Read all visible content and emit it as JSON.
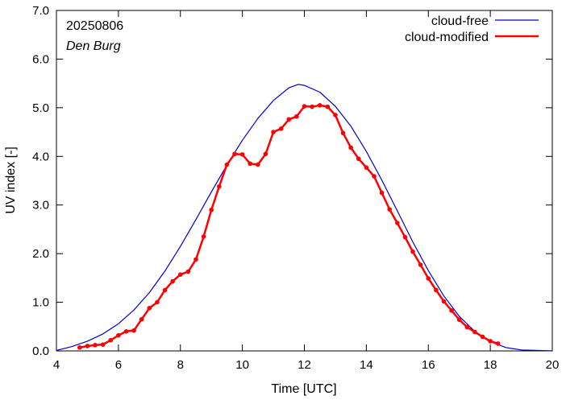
{
  "chart_data": {
    "type": "line",
    "annotations": {
      "date": "20250806",
      "station": "Den Burg"
    },
    "xlabel": "Time  [UTC]",
    "ylabel": "UV index  [-]",
    "xlim": [
      4,
      20
    ],
    "ylim": [
      0,
      7
    ],
    "x_ticks": [
      "4",
      "6",
      "8",
      "10",
      "12",
      "14",
      "16",
      "18",
      "20"
    ],
    "y_ticks": [
      "0.0",
      "1.0",
      "2.0",
      "3.0",
      "4.0",
      "5.0",
      "6.0",
      "7.0"
    ],
    "legend_position": "top-right",
    "grid": false,
    "series": [
      {
        "name": "cloud-free",
        "color": "#0000cc",
        "markers": false,
        "x": [
          4.0,
          4.5,
          5.0,
          5.5,
          6.0,
          6.5,
          7.0,
          7.5,
          8.0,
          8.5,
          9.0,
          9.5,
          10.0,
          10.5,
          11.0,
          11.5,
          11.8,
          12.0,
          12.5,
          13.0,
          13.5,
          14.0,
          14.5,
          15.0,
          15.5,
          16.0,
          16.5,
          17.0,
          17.5,
          18.0,
          18.5,
          19.0,
          19.5,
          20.0
        ],
        "y": [
          0.01,
          0.09,
          0.2,
          0.35,
          0.56,
          0.84,
          1.2,
          1.64,
          2.15,
          2.7,
          3.27,
          3.82,
          4.33,
          4.78,
          5.15,
          5.41,
          5.48,
          5.46,
          5.32,
          5.03,
          4.62,
          4.1,
          3.51,
          2.88,
          2.24,
          1.65,
          1.13,
          0.71,
          0.4,
          0.19,
          0.07,
          0.02,
          0.01,
          0.0
        ]
      },
      {
        "name": "cloud-modified",
        "color": "#ff0000",
        "markers": true,
        "x": [
          4.75,
          5.0,
          5.25,
          5.5,
          5.75,
          6.0,
          6.25,
          6.5,
          6.75,
          7.0,
          7.25,
          7.5,
          7.75,
          8.0,
          8.25,
          8.5,
          8.75,
          9.0,
          9.25,
          9.5,
          9.75,
          10.0,
          10.25,
          10.5,
          10.75,
          11.0,
          11.25,
          11.5,
          11.75,
          12.0,
          12.25,
          12.5,
          12.75,
          13.0,
          13.25,
          13.5,
          13.75,
          14.0,
          14.25,
          14.5,
          14.75,
          15.0,
          15.25,
          15.5,
          15.75,
          16.0,
          16.25,
          16.5,
          16.75,
          17.0,
          17.25,
          17.5,
          17.75,
          18.0,
          18.25
        ],
        "y": [
          0.07,
          0.1,
          0.12,
          0.13,
          0.22,
          0.32,
          0.4,
          0.42,
          0.65,
          0.88,
          1.0,
          1.25,
          1.43,
          1.57,
          1.63,
          1.88,
          2.35,
          2.9,
          3.38,
          3.83,
          4.05,
          4.04,
          3.85,
          3.83,
          4.05,
          4.5,
          4.57,
          4.76,
          4.82,
          5.03,
          5.02,
          5.05,
          5.02,
          4.85,
          4.48,
          4.18,
          3.95,
          3.77,
          3.59,
          3.25,
          2.91,
          2.63,
          2.34,
          2.04,
          1.77,
          1.49,
          1.25,
          1.02,
          0.83,
          0.64,
          0.49,
          0.39,
          0.29,
          0.2,
          0.15
        ]
      }
    ]
  }
}
